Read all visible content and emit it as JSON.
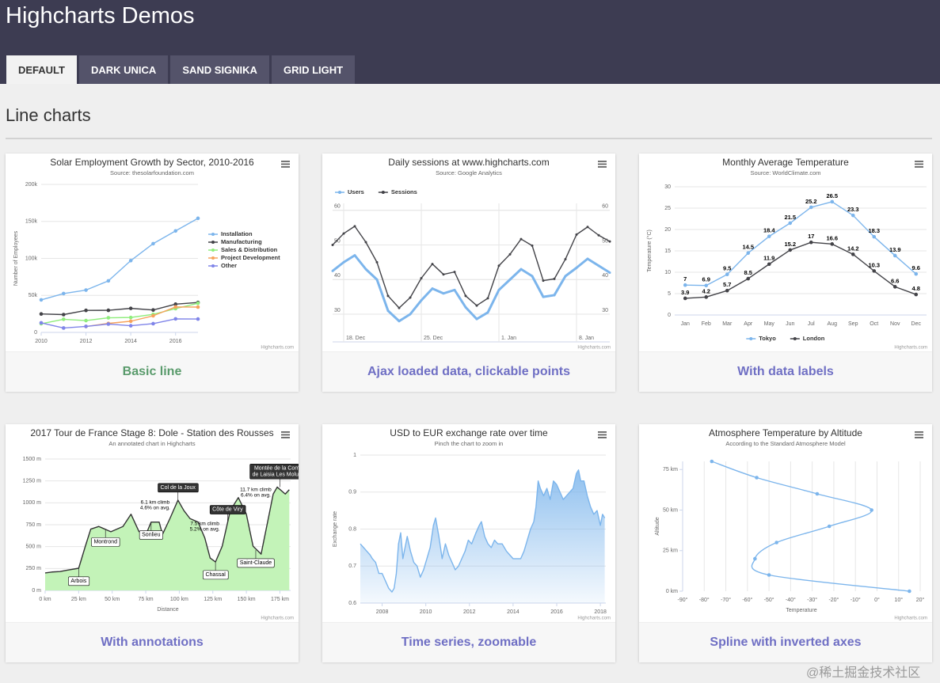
{
  "header": {
    "title": "Highcharts Demos"
  },
  "tabs": [
    "DEFAULT",
    "DARK UNICA",
    "SAND SIGNIKA",
    "GRID LIGHT"
  ],
  "active_tab": 0,
  "section": {
    "title": "Line charts"
  },
  "watermark": "@稀土掘金技术社区",
  "cards": [
    {
      "caption": "Basic line",
      "chart": {
        "type": "line",
        "title": "Solar Employment Growth by Sector, 2010-2016",
        "subtitle": "Source: thesolarfoundation.com",
        "credits": "Highcharts.com",
        "y_title": "Number of Employees",
        "x": [
          2010,
          2011,
          2012,
          2013,
          2014,
          2015,
          2016,
          2017
        ],
        "xlim": [
          2010,
          2017
        ],
        "xticks": [
          2010,
          2012,
          2014,
          2016
        ],
        "ylim": [
          0,
          200000
        ],
        "yticks": [
          0,
          {
            "value": 50000,
            "label": "50k"
          },
          {
            "value": 100000,
            "label": "100k"
          },
          {
            "value": 150000,
            "label": "150k"
          },
          {
            "value": 200000,
            "label": "200k"
          }
        ],
        "grid": true,
        "markers": true,
        "legend": "right",
        "series": [
          {
            "name": "Installation",
            "color": "#7cb5ec",
            "values": [
              43934,
              52503,
              57177,
              69658,
              97031,
              119931,
              137133,
              154175
            ]
          },
          {
            "name": "Manufacturing",
            "color": "#434348",
            "values": [
              24916,
              24064,
              29742,
              29851,
              32490,
              30282,
              38121,
              40434
            ]
          },
          {
            "name": "Sales & Distribution",
            "color": "#90ed7d",
            "values": [
              11744,
              17722,
              16005,
              19771,
              20185,
              24377,
              32147,
              39387
            ]
          },
          {
            "name": "Project Development",
            "color": "#f7a35c",
            "values": [
              null,
              null,
              7988,
              12169,
              15112,
              22452,
              34400,
              34227
            ]
          },
          {
            "name": "Other",
            "color": "#8085e9",
            "values": [
              12908,
              5948,
              8105,
              11248,
              8989,
              11816,
              18274,
              18111
            ]
          }
        ]
      }
    },
    {
      "caption": "Ajax loaded data, clickable points",
      "chart": {
        "type": "line",
        "title": "Daily sessions at www.highcharts.com",
        "subtitle": "Source: Google Analytics",
        "credits": "Highcharts.com",
        "categories": [
          null,
          "18. Dec",
          null,
          null,
          null,
          null,
          null,
          null,
          "25. Dec",
          null,
          null,
          null,
          null,
          null,
          null,
          "1. Jan",
          null,
          null,
          null,
          null,
          null,
          null,
          "8. Jan",
          null,
          null,
          null
        ],
        "ylim": [
          22,
          62
        ],
        "yticks": [
          30,
          40,
          50,
          60
        ],
        "y2lim": [
          22,
          62
        ],
        "y2ticks": [
          30,
          40,
          50,
          60
        ],
        "grid": true,
        "markers": true,
        "legend": "top",
        "series": [
          {
            "name": "Users",
            "color": "#7cb5ec",
            "values": [
              42.5,
              45,
              47,
              43,
              40,
              31,
              28,
              30,
              34,
              37.4,
              36,
              37,
              32,
              28.6,
              30.5,
              37,
              40,
              43,
              41,
              35,
              35.5,
              41,
              43.4,
              46,
              44,
              42
            ]
          },
          {
            "name": "Sessions",
            "color": "#434348",
            "axis": "y2",
            "values": [
              50,
              53.3,
              55.4,
              50.8,
              45,
              35.3,
              31.8,
              34.8,
              40.4,
              44.5,
              41.5,
              42.2,
              35.3,
              32.5,
              34.6,
              44,
              47.3,
              51.7,
              49.8,
              39.7,
              40.2,
              45.9,
              53,
              55.2,
              52.8,
              51
            ]
          }
        ]
      }
    },
    {
      "caption": "With data labels",
      "chart": {
        "type": "line",
        "title": "Monthly Average Temperature",
        "subtitle": "Source: WorldClimate.com",
        "credits": "Highcharts.com",
        "y_title": "Temperature (°C)",
        "categories": [
          "Jan",
          "Feb",
          "Mar",
          "Apr",
          "May",
          "Jun",
          "Jul",
          "Aug",
          "Sep",
          "Oct",
          "Nov",
          "Dec"
        ],
        "ylim": [
          0,
          30
        ],
        "yticks": [
          0,
          5,
          10,
          15,
          20,
          25,
          30
        ],
        "grid": true,
        "markers": true,
        "data_labels": true,
        "legend": "bottom",
        "series": [
          {
            "name": "Tokyo",
            "color": "#7cb5ec",
            "values": [
              7,
              6.9,
              9.5,
              14.5,
              18.4,
              21.5,
              25.2,
              26.5,
              23.3,
              18.3,
              13.9,
              9.6
            ]
          },
          {
            "name": "London",
            "color": "#434348",
            "values": [
              3.9,
              4.2,
              5.7,
              8.5,
              11.9,
              15.2,
              17,
              16.6,
              14.2,
              10.3,
              6.6,
              4.8
            ]
          }
        ]
      }
    },
    {
      "caption": "With annotations",
      "chart": {
        "type": "area",
        "title": "2017 Tour de France Stage 8: Dole - Station des Rousses",
        "subtitle": "An annotated chart in Highcharts",
        "credits": "Highcharts.com",
        "x_title": "Distance",
        "color": "#c3f3b8",
        "line_color": "#333333",
        "x": [
          0,
          5,
          11,
          16,
          25,
          30,
          34,
          40,
          49,
          58,
          64,
          70,
          76,
          79,
          85,
          87.5,
          93,
          99,
          103.5,
          108,
          114,
          119,
          123,
          127,
          132,
          138,
          144,
          150,
          155,
          161,
          167,
          170,
          173,
          179,
          182
        ],
        "values": [
          199,
          210,
          215,
          230,
          253,
          506,
          700,
          730,
          670,
          730,
          870,
          670,
          670,
          780,
          780,
          640,
          820,
          1030,
          910,
          820,
          780,
          600,
          370,
          325,
          505,
          910,
          1060,
          870,
          505,
          415,
          870,
          1100,
          1180,
          1100,
          1150
        ],
        "xlim": [
          0,
          183
        ],
        "xticks": [
          {
            "value": 0,
            "label": "0 km"
          },
          {
            "value": 25,
            "label": "25 km"
          },
          {
            "value": 50,
            "label": "50 km"
          },
          {
            "value": 75,
            "label": "75 km"
          },
          {
            "value": 100,
            "label": "100 km"
          },
          {
            "value": 125,
            "label": "125 km"
          },
          {
            "value": 150,
            "label": "150 km"
          },
          {
            "value": 175,
            "label": "175 km"
          }
        ],
        "ylim": [
          0,
          1500
        ],
        "yticks": [
          {
            "value": 0,
            "label": "0 m"
          },
          {
            "value": 250,
            "label": "250 m"
          },
          {
            "value": 500,
            "label": "500 m"
          },
          {
            "value": 750,
            "label": "750 m"
          },
          {
            "value": 1000,
            "label": "1000 m"
          },
          {
            "value": 1250,
            "label": "1250 m"
          },
          {
            "value": 1500,
            "label": "1500 m"
          }
        ],
        "grid": true,
        "annotations": [
          {
            "lines": [
              "Arbois"
            ],
            "x": 25,
            "y": 253,
            "color": "#ffffff"
          },
          {
            "lines": [
              "Montrond"
            ],
            "x": 45,
            "y": 700,
            "color": "#ffffff"
          },
          {
            "lines": [
              "Sonlieu"
            ],
            "x": 79,
            "y": 780,
            "color": "#ffffff"
          },
          {
            "lines": [
              "Col de la Joux"
            ],
            "x": 99,
            "y": 1030,
            "color": "#333333"
          },
          {
            "lines": [
              "Côte de Viry"
            ],
            "x": 136,
            "y": 780,
            "color": "#333333"
          },
          {
            "lines": [
              "Chassal"
            ],
            "x": 127,
            "y": 325,
            "color": "#ffffff"
          },
          {
            "lines": [
              "Saint-Claude"
            ],
            "x": 157,
            "y": 460,
            "color": "#ffffff"
          },
          {
            "lines": [
              "Montée de la Combe",
              "de Laisia Les Molunes"
            ],
            "x": 175,
            "y": 1180,
            "color": "#333333"
          }
        ],
        "notes": [
          {
            "lines": [
              "6.1 km climb",
              "4.6% on avg."
            ],
            "x": 82,
            "y": 975
          },
          {
            "lines": [
              "7.5 km climb",
              "5.2% on avg."
            ],
            "x": 119,
            "y": 730
          },
          {
            "lines": [
              "11.7 km climb",
              "6.4% on avg."
            ],
            "x": 157,
            "y": 1120
          }
        ]
      }
    },
    {
      "caption": "Time series, zoomable",
      "chart": {
        "type": "area",
        "title": "USD to EUR exchange rate over time",
        "subtitle": "Pinch the chart to zoom in",
        "credits": "Highcharts.com",
        "y_title": "Exchange rate",
        "color": "#7cb5ec",
        "gradient": true,
        "x": [
          2007,
          2007.15,
          2007.3,
          2007.45,
          2007.55,
          2007.7,
          2007.85,
          2008,
          2008.15,
          2008.3,
          2008.45,
          2008.55,
          2008.65,
          2008.75,
          2008.85,
          2008.95,
          2009.05,
          2009.15,
          2009.3,
          2009.45,
          2009.6,
          2009.75,
          2009.9,
          2010.05,
          2010.2,
          2010.35,
          2010.45,
          2010.6,
          2010.75,
          2010.9,
          2011.05,
          2011.2,
          2011.35,
          2011.5,
          2011.65,
          2011.8,
          2011.95,
          2012.1,
          2012.3,
          2012.45,
          2012.55,
          2012.7,
          2012.85,
          2013,
          2013.15,
          2013.3,
          2013.5,
          2013.7,
          2013.85,
          2014,
          2014.2,
          2014.35,
          2014.5,
          2014.65,
          2014.8,
          2014.95,
          2015.05,
          2015.15,
          2015.25,
          2015.4,
          2015.55,
          2015.7,
          2015.85,
          2016,
          2016.15,
          2016.3,
          2016.45,
          2016.6,
          2016.75,
          2016.9,
          2017,
          2017.1,
          2017.25,
          2017.4,
          2017.55,
          2017.7,
          2017.85,
          2018,
          2018.1,
          2018.2
        ],
        "values": [
          0.76,
          0.75,
          0.74,
          0.73,
          0.72,
          0.71,
          0.68,
          0.68,
          0.66,
          0.64,
          0.63,
          0.64,
          0.68,
          0.76,
          0.79,
          0.72,
          0.75,
          0.78,
          0.74,
          0.71,
          0.7,
          0.67,
          0.69,
          0.72,
          0.75,
          0.81,
          0.83,
          0.78,
          0.72,
          0.76,
          0.73,
          0.71,
          0.69,
          0.7,
          0.72,
          0.74,
          0.77,
          0.76,
          0.79,
          0.81,
          0.82,
          0.78,
          0.76,
          0.75,
          0.77,
          0.76,
          0.76,
          0.74,
          0.73,
          0.72,
          0.72,
          0.72,
          0.74,
          0.77,
          0.8,
          0.82,
          0.86,
          0.93,
          0.91,
          0.89,
          0.91,
          0.88,
          0.93,
          0.92,
          0.9,
          0.88,
          0.89,
          0.9,
          0.91,
          0.95,
          0.96,
          0.93,
          0.93,
          0.89,
          0.86,
          0.84,
          0.85,
          0.81,
          0.84,
          0.83
        ],
        "xlim": [
          2007,
          2018.25
        ],
        "xticks": [
          2008,
          2010,
          2012,
          2014,
          2016,
          2018
        ],
        "ylim": [
          0.6,
          1
        ],
        "yticks": [
          0.6,
          0.7,
          0.8,
          0.9,
          1
        ],
        "grid": true
      }
    },
    {
      "caption": "Spline with inverted axes",
      "chart": {
        "type": "spline",
        "inverted": true,
        "title": "Atmosphere Temperature by Altitude",
        "subtitle": "According to the Standard Atmosphere Model",
        "credits": "Highcharts.com",
        "x_title": "Altitude",
        "y_title": "Temperature",
        "x": [
          0,
          10,
          20,
          30,
          40,
          50,
          60,
          70,
          80
        ],
        "xlim": [
          0,
          80
        ],
        "xticks": [
          {
            "value": 0,
            "label": "0 km"
          },
          {
            "value": 25,
            "label": "25 km"
          },
          {
            "value": 50,
            "label": "50 km"
          },
          {
            "value": 75,
            "label": "75 km"
          }
        ],
        "values": [
          15,
          -50,
          -56.5,
          -46.5,
          -22.1,
          -2.5,
          -27.7,
          -55.7,
          -76.5
        ],
        "color": "#7cb5ec",
        "ylim": [
          -90,
          20
        ],
        "yticks": [
          {
            "value": -90,
            "label": "-90°"
          },
          {
            "value": -80,
            "label": "-80°"
          },
          {
            "value": -70,
            "label": "-70°"
          },
          {
            "value": -60,
            "label": "-60°"
          },
          {
            "value": -50,
            "label": "-50°"
          },
          {
            "value": -40,
            "label": "-40°"
          },
          {
            "value": -30,
            "label": "-30°"
          },
          {
            "value": -20,
            "label": "-20°"
          },
          {
            "value": -10,
            "label": "-10°"
          },
          {
            "value": 0,
            "label": "0°"
          },
          {
            "value": 10,
            "label": "10°"
          },
          {
            "value": 20,
            "label": "20°"
          }
        ],
        "grid": true,
        "markers": true
      }
    }
  ]
}
